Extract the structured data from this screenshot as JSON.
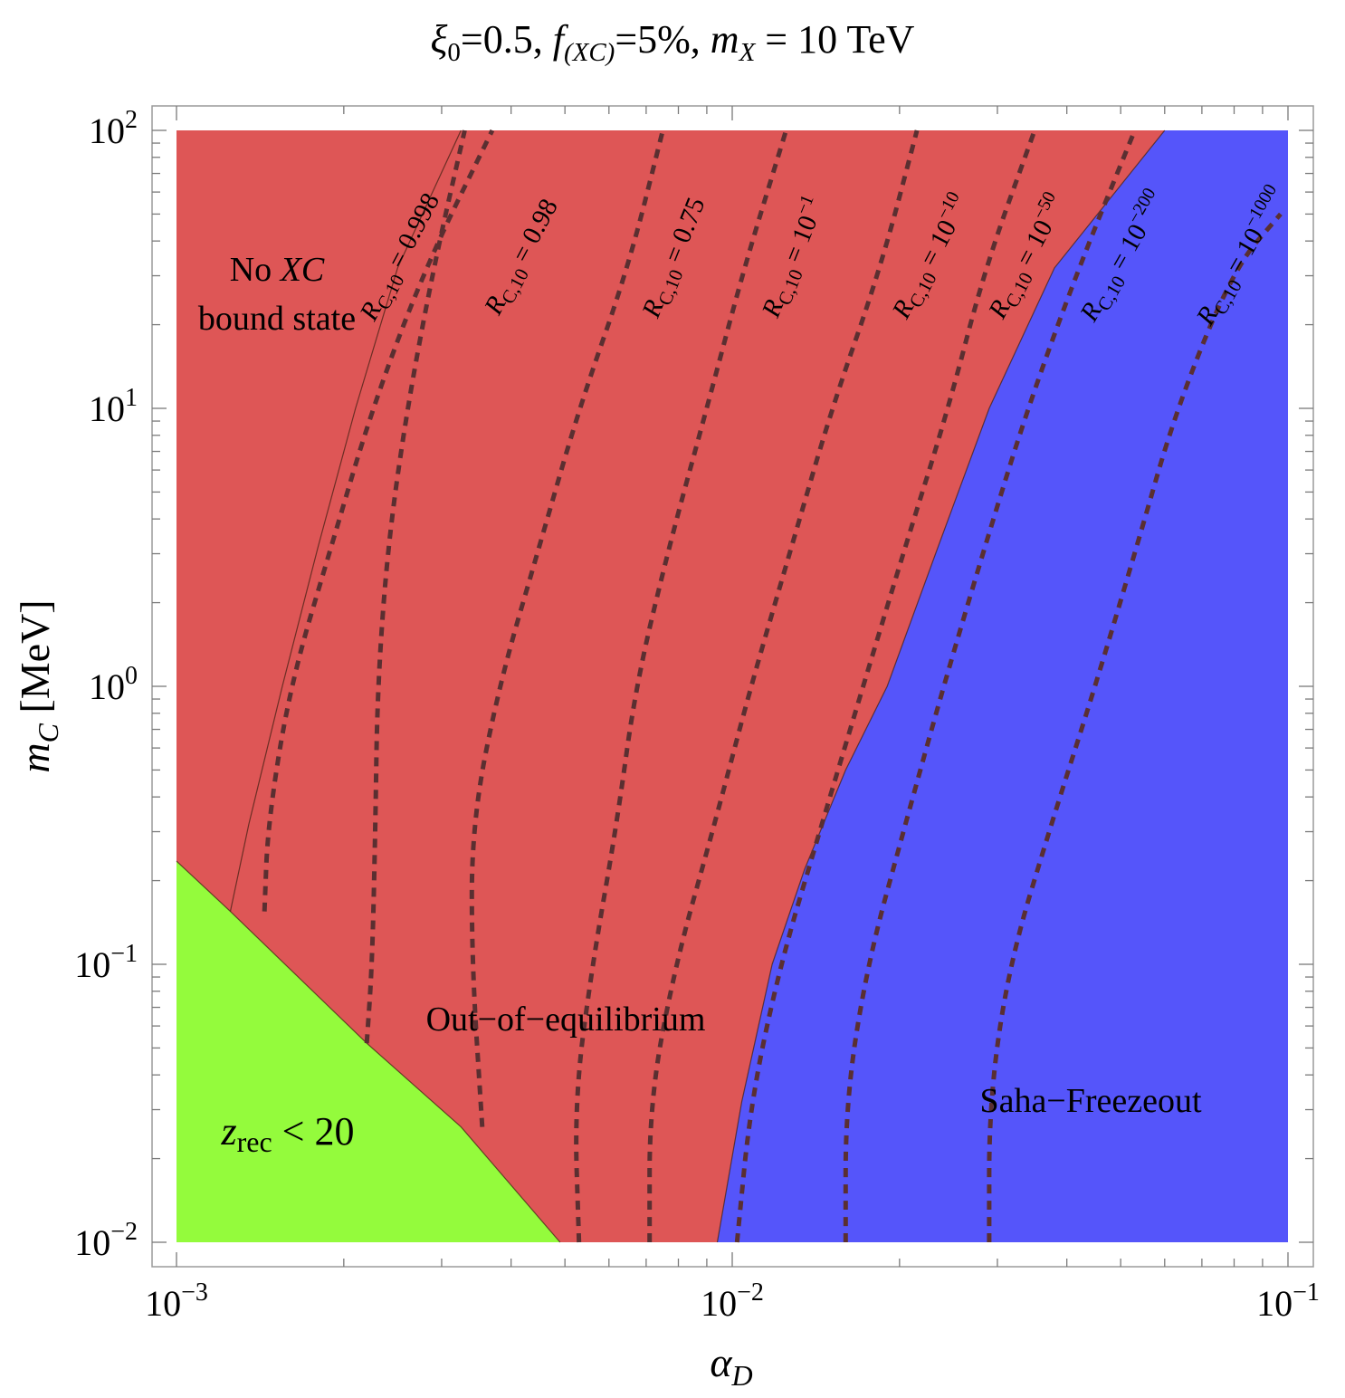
{
  "chart_data": {
    "type": "area",
    "title": "ξ0=0.5, f(XC)=5%, mX = 10 TeV",
    "title_parts": {
      "xi": "ξ",
      "xi_sub": "0",
      "xi_val": "=0.5, ",
      "f": "f",
      "f_sub": "(XC)",
      "f_val": "=5%, ",
      "m": "m",
      "m_sub": "X",
      "m_val": " = 10 TeV"
    },
    "xlabel": "αD",
    "xlabel_parts": {
      "main": "α",
      "sub": "D"
    },
    "ylabel": "mC [MeV]",
    "ylabel_parts": {
      "main": "m",
      "sub": "C",
      "rest": " [MeV]"
    },
    "xscale": "log",
    "yscale": "log",
    "xlim": [
      0.001,
      0.1
    ],
    "ylim": [
      0.01,
      100
    ],
    "x_ticks": [
      {
        "value": 0.001,
        "base": "10",
        "exp": "−3"
      },
      {
        "value": 0.01,
        "base": "10",
        "exp": "−2"
      },
      {
        "value": 0.1,
        "base": "10",
        "exp": "−1"
      }
    ],
    "y_ticks": [
      {
        "value": 0.01,
        "base": "10",
        "exp": "−2"
      },
      {
        "value": 0.1,
        "base": "10",
        "exp": "−1"
      },
      {
        "value": 1,
        "base": "10",
        "exp": "0"
      },
      {
        "value": 10,
        "base": "10",
        "exp": "1"
      },
      {
        "value": 100,
        "base": "10",
        "exp": "2"
      }
    ],
    "colors": {
      "no_bound": "#e0801f",
      "out_of_eq": "#de5656",
      "saha": "#5555fa",
      "zrec": "#94fb3c",
      "contour": "#5a2f31"
    },
    "boundaries": {
      "zrec_line": [
        [
          0.001,
          0.235
        ],
        [
          0.00125,
          0.155
        ],
        [
          0.0022,
          0.052
        ],
        [
          0.00325,
          0.026
        ],
        [
          0.0049,
          0.01
        ]
      ],
      "no_bound_edge": [
        [
          0.00125,
          0.155
        ],
        [
          0.00135,
          0.32
        ],
        [
          0.00155,
          1.0
        ],
        [
          0.0018,
          3.2
        ],
        [
          0.0021,
          10
        ],
        [
          0.0025,
          32
        ],
        [
          0.00325,
          100
        ]
      ],
      "saha_edge": [
        [
          0.0094,
          0.01
        ],
        [
          0.0104,
          0.032
        ],
        [
          0.0118,
          0.1
        ],
        [
          0.0135,
          0.22
        ],
        [
          0.016,
          0.5
        ],
        [
          0.019,
          1.0
        ],
        [
          0.0235,
          3.2
        ],
        [
          0.029,
          10
        ],
        [
          0.038,
          32
        ],
        [
          0.06,
          100
        ]
      ]
    },
    "regions": [
      {
        "name": "No XC bound state",
        "text_line1_a": "No ",
        "text_line1_b": "XC",
        "text_line2": "bound state"
      },
      {
        "name": "Out-of-equilibrium",
        "text": "Out−of−equilibrium"
      },
      {
        "name": "Saha-Freezeout",
        "text": "Saha−Freezeout"
      },
      {
        "name": "zrec < 20",
        "text_main": "z",
        "text_sub": "rec",
        "text_rest": " < 20"
      }
    ],
    "contours": [
      {
        "label_main": "R",
        "label_sub": "C,10",
        "label_eq": " = 0.998",
        "label_exp": "",
        "label_at": [
          0.0026,
          34
        ],
        "angle": -62,
        "points": [
          [
            0.0022,
            0.052
          ],
          [
            0.00225,
            0.1
          ],
          [
            0.00228,
            0.32
          ],
          [
            0.0023,
            1.0
          ],
          [
            0.0024,
            3.2
          ],
          [
            0.0026,
            10
          ],
          [
            0.0029,
            32
          ],
          [
            0.0033,
            100
          ]
        ]
      },
      {
        "label_main": "R",
        "label_sub": "C,10",
        "label_eq": " = 0.98",
        "label_exp": "",
        "label_at": [
          0.0043,
          34
        ],
        "angle": -62,
        "points": [
          [
            0.00144,
            0.155
          ],
          [
            0.00146,
            0.32
          ],
          [
            0.0016,
            1.0
          ],
          [
            0.0019,
            3.2
          ],
          [
            0.00225,
            10
          ],
          [
            0.0028,
            32
          ],
          [
            0.0037,
            100
          ]
        ]
      },
      {
        "label_main": "R",
        "label_sub": "C,10",
        "label_eq": " = 0.75",
        "label_exp": "",
        "label_at": [
          0.0081,
          34
        ],
        "angle": -68,
        "points": [
          [
            0.00355,
            0.026
          ],
          [
            0.0034,
            0.1
          ],
          [
            0.0034,
            0.32
          ],
          [
            0.0038,
            1.0
          ],
          [
            0.0045,
            3.2
          ],
          [
            0.0053,
            10
          ],
          [
            0.0065,
            32
          ],
          [
            0.0075,
            100
          ]
        ]
      },
      {
        "label_main": "R",
        "label_sub": "C,10",
        "label_eq": " = 10",
        "label_exp": "−1",
        "label_at": [
          0.0133,
          34
        ],
        "angle": -68,
        "points": [
          [
            0.0053,
            0.01
          ],
          [
            0.0052,
            0.032
          ],
          [
            0.0056,
            0.1
          ],
          [
            0.0062,
            0.32
          ],
          [
            0.0067,
            1.0
          ],
          [
            0.0077,
            3.2
          ],
          [
            0.009,
            10
          ],
          [
            0.0105,
            32
          ],
          [
            0.0125,
            100
          ]
        ]
      },
      {
        "label_main": "R",
        "label_sub": "C,10",
        "label_eq": " = 10",
        "label_exp": "−10",
        "label_at": [
          0.0235,
          34
        ],
        "angle": -62,
        "points": [
          [
            0.0071,
            0.01
          ],
          [
            0.0071,
            0.032
          ],
          [
            0.0079,
            0.1
          ],
          [
            0.0093,
            0.32
          ],
          [
            0.0108,
            1.0
          ],
          [
            0.0128,
            3.2
          ],
          [
            0.0151,
            10
          ],
          [
            0.0185,
            32
          ],
          [
            0.0215,
            100
          ]
        ]
      },
      {
        "label_main": "R",
        "label_sub": "C,10",
        "label_eq": " = 10",
        "label_exp": "−50",
        "label_at": [
          0.035,
          34
        ],
        "angle": -62,
        "points": [
          [
            0.0102,
            0.01
          ],
          [
            0.0108,
            0.032
          ],
          [
            0.0122,
            0.1
          ],
          [
            0.0145,
            0.32
          ],
          [
            0.0172,
            1.0
          ],
          [
            0.0205,
            3.2
          ],
          [
            0.0245,
            10
          ],
          [
            0.0285,
            32
          ],
          [
            0.035,
            100
          ]
        ]
      },
      {
        "label_main": "R",
        "label_sub": "C,10",
        "label_eq": " = 10",
        "label_exp": "−200",
        "label_at": [
          0.052,
          34
        ],
        "angle": -60,
        "points": [
          [
            0.016,
            0.01
          ],
          [
            0.016,
            0.032
          ],
          [
            0.0175,
            0.1
          ],
          [
            0.0205,
            0.32
          ],
          [
            0.024,
            1.0
          ],
          [
            0.0285,
            3.2
          ],
          [
            0.034,
            10
          ],
          [
            0.042,
            32
          ],
          [
            0.053,
            100
          ]
        ]
      },
      {
        "label_main": "R",
        "label_sub": "C,10",
        "label_eq": " = 10",
        "label_exp": "−1000",
        "label_at": [
          0.085,
          34
        ],
        "angle": -60,
        "points": [
          [
            0.029,
            0.01
          ],
          [
            0.029,
            0.032
          ],
          [
            0.0315,
            0.1
          ],
          [
            0.0375,
            0.32
          ],
          [
            0.045,
            1.0
          ],
          [
            0.0535,
            3.2
          ],
          [
            0.063,
            10
          ],
          [
            0.08,
            32
          ],
          [
            0.097,
            50
          ]
        ]
      }
    ]
  }
}
